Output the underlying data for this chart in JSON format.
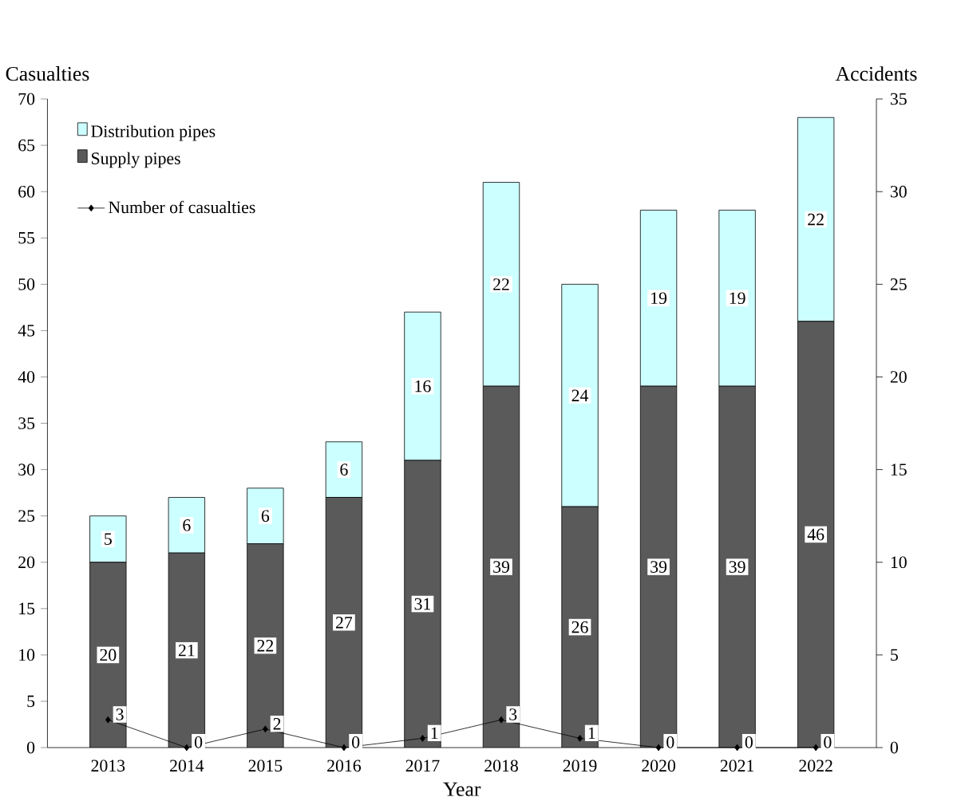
{
  "chart_data": {
    "type": "bar",
    "stacked": true,
    "xlabel": "Year",
    "ylabel": "Casualties",
    "y2label": "Accidents",
    "categories": [
      "2013",
      "2014",
      "2015",
      "2016",
      "2017",
      "2018",
      "2019",
      "2020",
      "2021",
      "2022"
    ],
    "series": [
      {
        "name": "Supply pipes",
        "color": "#5a5a5a",
        "values": [
          20,
          21,
          22,
          27,
          31,
          39,
          26,
          39,
          39,
          46
        ]
      },
      {
        "name": "Distribution pipes",
        "color": "#ccffff",
        "values": [
          5,
          6,
          6,
          6,
          16,
          22,
          24,
          19,
          19,
          22
        ]
      },
      {
        "name": "Number of casualties",
        "type": "line",
        "color": "#000000",
        "marker": "diamond",
        "values": [
          3,
          0,
          2,
          0,
          1,
          3,
          1,
          0,
          0,
          0
        ]
      }
    ],
    "ylim": [
      0,
      70
    ],
    "yticks": [
      0,
      5,
      10,
      15,
      20,
      25,
      30,
      35,
      40,
      45,
      50,
      55,
      60,
      65,
      70
    ],
    "y2lim": [
      0,
      35
    ],
    "y2ticks": [
      0,
      5,
      10,
      15,
      20,
      25,
      30,
      35
    ],
    "data_labels": true,
    "legend": "top left"
  }
}
